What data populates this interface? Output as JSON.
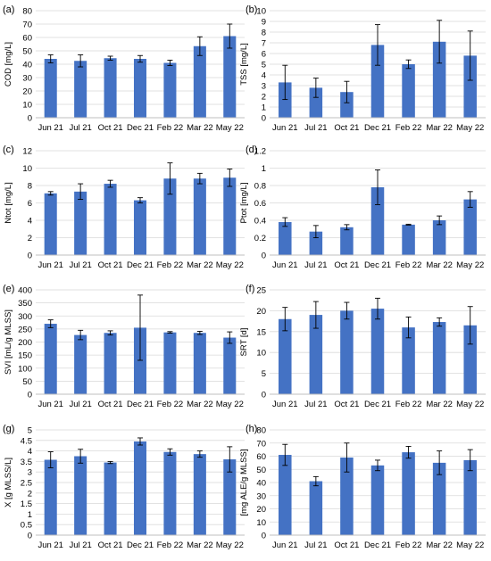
{
  "chart_data": [
    {
      "panel": "(a)",
      "type": "bar",
      "categories": [
        "Jun 21",
        "Jul 21",
        "Oct 21",
        "Dec 21",
        "Feb 22",
        "Mar 22",
        "May 22"
      ],
      "values": [
        44,
        42.5,
        44.5,
        44,
        41,
        53.5,
        61
      ],
      "errors": [
        3,
        4.5,
        1.5,
        2.5,
        2,
        7,
        9
      ],
      "ylabel": "COD [mg/L]",
      "ylim": [
        0,
        80
      ],
      "yticks": [
        "0",
        "10",
        "20",
        "30",
        "40",
        "50",
        "60",
        "70",
        "80"
      ],
      "grid": true
    },
    {
      "panel": "(b)",
      "type": "bar",
      "categories": [
        "Jun 21",
        "Jul 21",
        "Oct 21",
        "Dec 21",
        "Feb 22",
        "Mar 22",
        "May 22"
      ],
      "values": [
        3.3,
        2.8,
        2.4,
        6.8,
        5.0,
        7.1,
        5.8
      ],
      "errors": [
        1.6,
        0.9,
        1.0,
        1.9,
        0.4,
        2.0,
        2.3
      ],
      "ylabel": "TSS [mg/L]",
      "ylim": [
        0,
        10
      ],
      "yticks": [
        "0",
        "1",
        "2",
        "3",
        "4",
        "5",
        "6",
        "7",
        "8",
        "9",
        "10"
      ],
      "grid": true
    },
    {
      "panel": "(c)",
      "type": "bar",
      "categories": [
        "Jun 21",
        "Jul 21",
        "Oct 21",
        "Dec 21",
        "Feb 22",
        "Mar 22",
        "May 22"
      ],
      "values": [
        7.1,
        7.3,
        8.2,
        6.3,
        8.8,
        8.8,
        8.9
      ],
      "errors": [
        0.2,
        0.9,
        0.4,
        0.3,
        1.8,
        0.6,
        1.0
      ],
      "ylabel": "Ntot [mg/L]",
      "ylim": [
        0,
        12
      ],
      "yticks": [
        "0",
        "2",
        "4",
        "6",
        "8",
        "10",
        "12"
      ],
      "grid": true
    },
    {
      "panel": "(d)",
      "type": "bar",
      "categories": [
        "Jun 21",
        "Jul 21",
        "Oct 21",
        "Dec 21",
        "Feb 22",
        "Mar 22",
        "May 22"
      ],
      "values": [
        0.38,
        0.27,
        0.32,
        0.78,
        0.35,
        0.4,
        0.64
      ],
      "errors": [
        0.05,
        0.07,
        0.03,
        0.2,
        0.005,
        0.05,
        0.09
      ],
      "ylabel": "Ptot [mg/L]",
      "ylim": [
        0,
        1.2
      ],
      "yticks": [
        "0",
        "0.2",
        "0.4",
        "0.6",
        "0.8",
        "1",
        "1.2"
      ],
      "grid": true
    },
    {
      "panel": "(e)",
      "type": "bar",
      "categories": [
        "Jun 21",
        "Jul 21",
        "Oct 21",
        "Dec 21",
        "Feb 22",
        "Mar 22",
        "May 22"
      ],
      "values": [
        270,
        227,
        235,
        255,
        237,
        235,
        217
      ],
      "errors": [
        15,
        18,
        8,
        125,
        3,
        6,
        22
      ],
      "ylabel": "SVI [mL/g MLSS]",
      "ylim": [
        0,
        400
      ],
      "yticks": [
        "0",
        "50",
        "100",
        "150",
        "200",
        "250",
        "300",
        "350",
        "400"
      ],
      "grid": true
    },
    {
      "panel": "(f)",
      "type": "bar",
      "categories": [
        "Jun 21",
        "Jul 21",
        "Oct 21",
        "Dec 21",
        "Feb 22",
        "Mar 22",
        "May 22"
      ],
      "values": [
        18,
        19,
        20,
        20.5,
        16,
        17.3,
        16.5
      ],
      "errors": [
        2.8,
        3.2,
        2,
        2.5,
        2.5,
        1,
        4.5
      ],
      "ylabel": "SRT [d]",
      "ylim": [
        0,
        25
      ],
      "yticks": [
        "0",
        "5",
        "10",
        "15",
        "20",
        "25"
      ],
      "grid": true
    },
    {
      "panel": "(g)",
      "type": "bar",
      "categories": [
        "Jun 21",
        "Jul 21",
        "Oct 21",
        "Dec 21",
        "Feb 22",
        "Mar 22",
        "May 22"
      ],
      "values": [
        3.58,
        3.75,
        3.45,
        4.45,
        3.95,
        3.85,
        3.6
      ],
      "errors": [
        0.38,
        0.33,
        0.05,
        0.17,
        0.15,
        0.15,
        0.6
      ],
      "ylabel": "X [g MLSS/L]",
      "ylim": [
        0,
        5
      ],
      "yticks": [
        "0",
        "0.5",
        "1",
        "1.5",
        "2",
        "2.5",
        "3",
        "3.5",
        "4",
        "4.5",
        "5"
      ],
      "grid": true
    },
    {
      "panel": "(h)",
      "type": "bar",
      "categories": [
        "Jun 21",
        "Jul 21",
        "Oct 21",
        "Dec 21",
        "Feb 22",
        "Mar 22",
        "May 22"
      ],
      "values": [
        61,
        41,
        59,
        53,
        63,
        55,
        57
      ],
      "errors": [
        8,
        3.5,
        11,
        4,
        4.5,
        9,
        8
      ],
      "ylabel": "[mg ALE/g MLSS]",
      "ylim": [
        0,
        80
      ],
      "yticks": [
        "0",
        "10",
        "20",
        "30",
        "40",
        "50",
        "60",
        "70",
        "80"
      ],
      "grid": true
    }
  ],
  "colors": {
    "bar": "#4472C4",
    "grid": "#D9D9D9",
    "error_bar": "#000000"
  }
}
